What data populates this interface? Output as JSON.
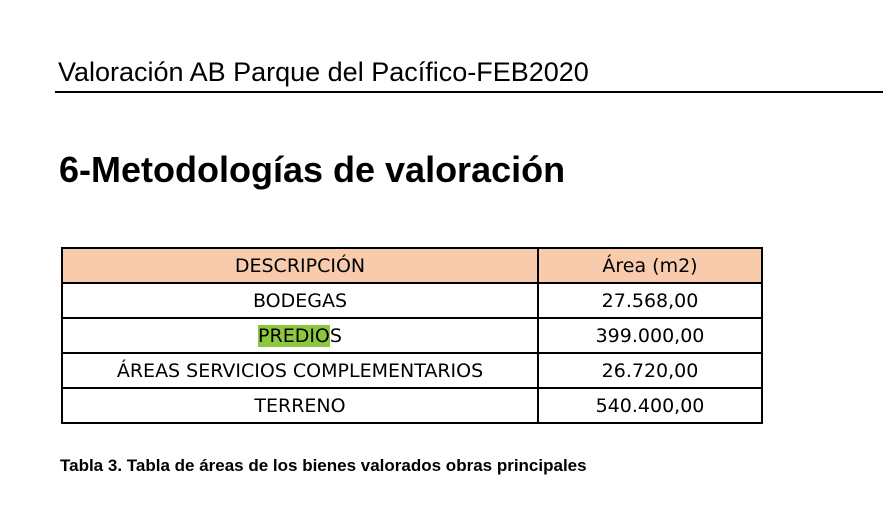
{
  "header": {
    "title": "Valoración AB Parque del Pacífico-FEB2020"
  },
  "section": {
    "heading": "6-Metodologías de valoración"
  },
  "table": {
    "columns": [
      "DESCRIPCIÓN",
      "Área (m2)"
    ],
    "rows": [
      {
        "label": "BODEGAS",
        "area": "27.568,00"
      },
      {
        "label_highlighted": "PREDIO",
        "label_rest": "S",
        "area": "399.000,00"
      },
      {
        "label": "ÁREAS SERVICIOS COMPLEMENTARIOS",
        "area": "26.720,00"
      },
      {
        "label": "TERRENO",
        "area": "540.400,00"
      }
    ],
    "header_fill": "#f8cbad",
    "highlight_color": "#8dc63f"
  },
  "caption": "Tabla 3. Tabla de áreas de los bienes valorados obras principales"
}
